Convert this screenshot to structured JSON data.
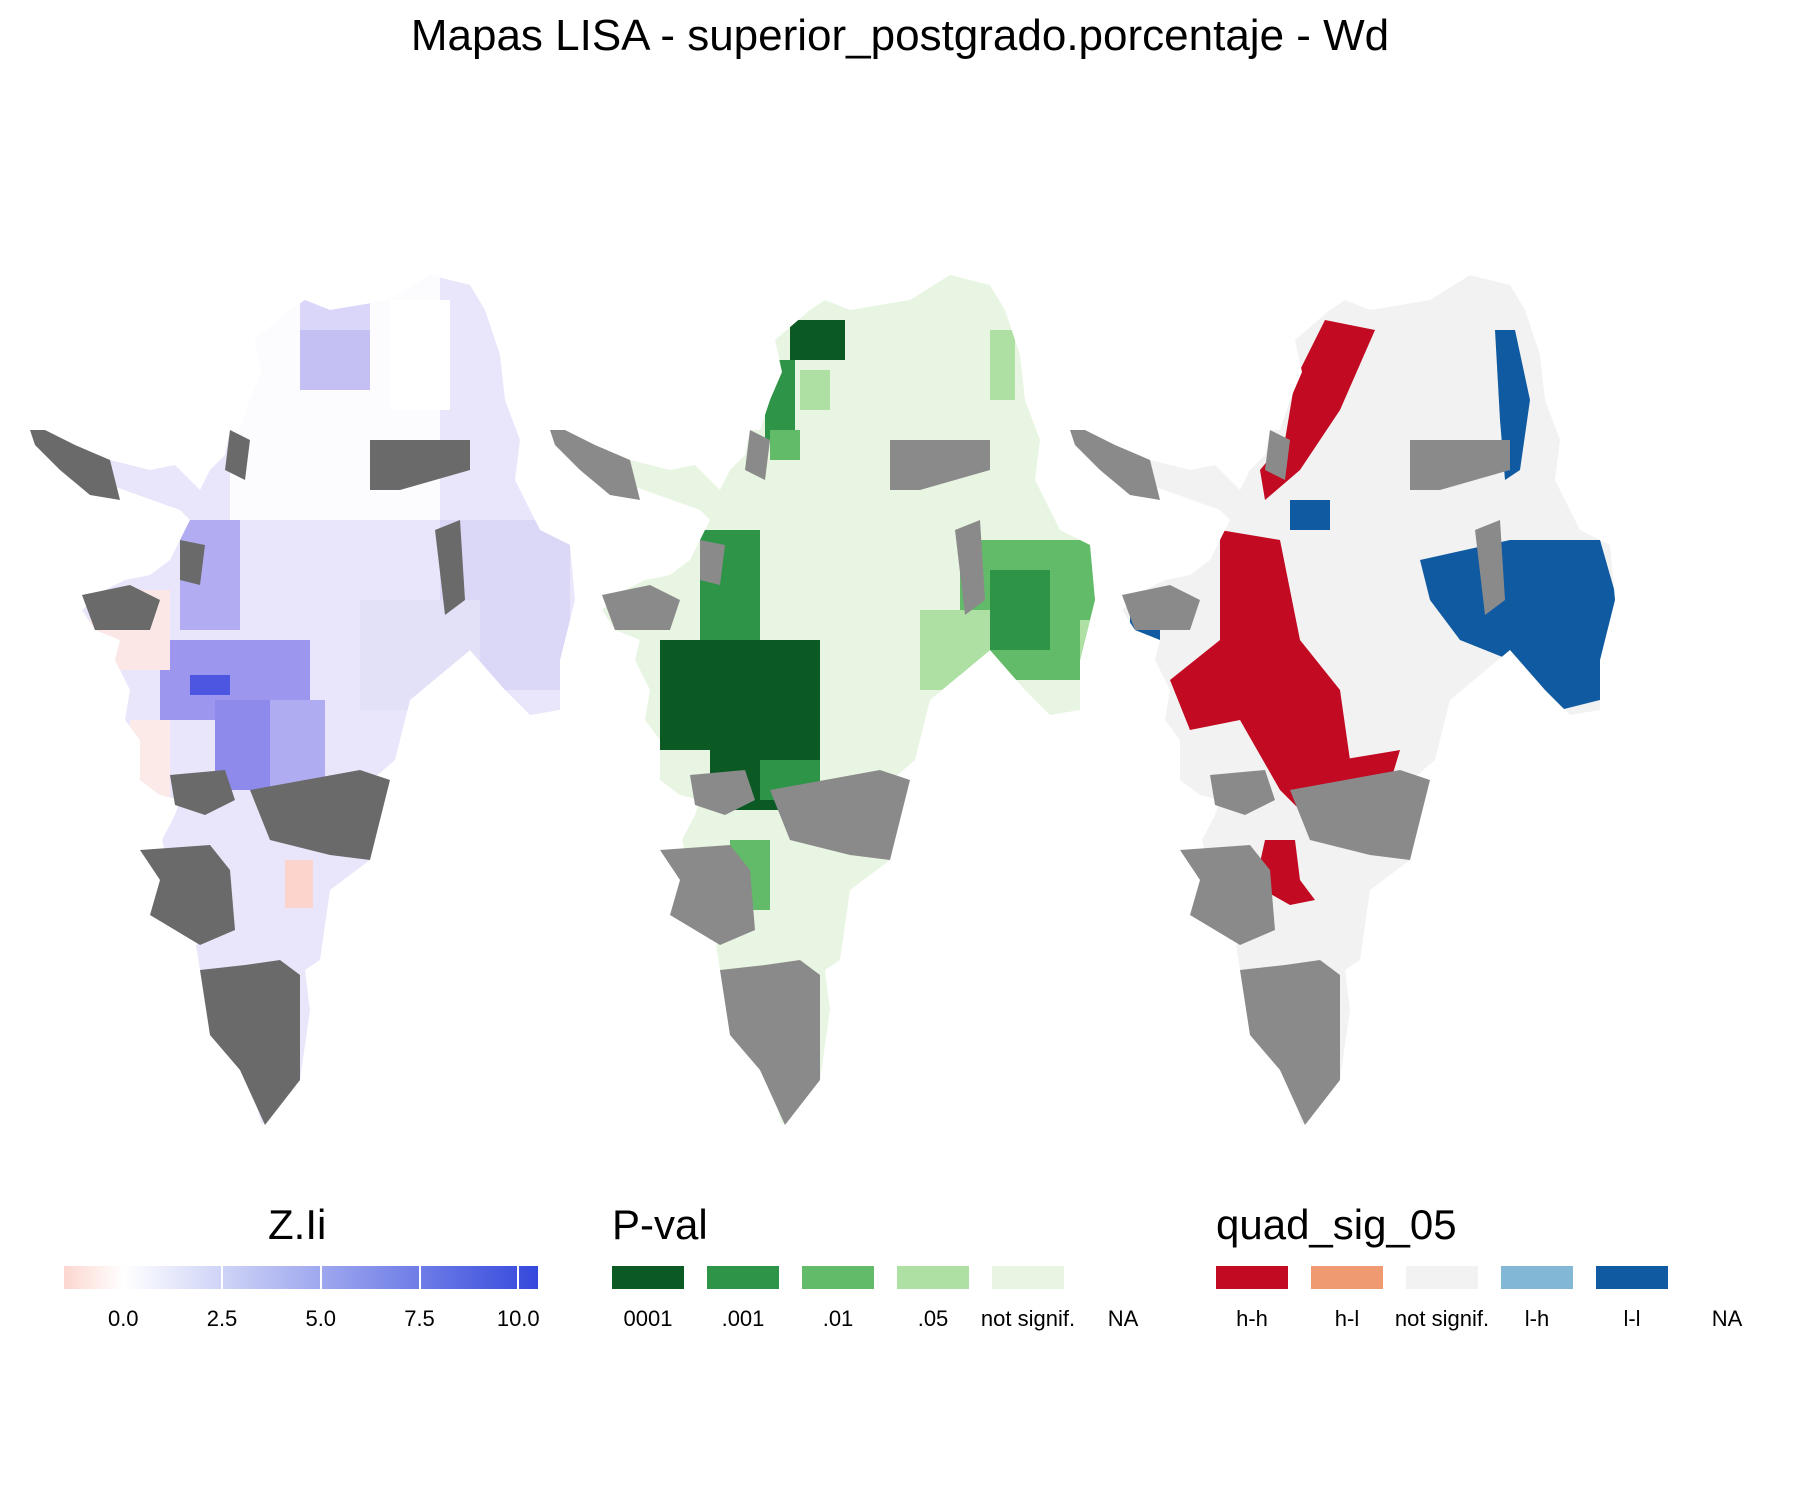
{
  "title": "Mapas LISA - superior_postgrado.porcentaje - Wd",
  "colors": {
    "missing": "#6a6a6a",
    "missing_light": "#8a8a8a",
    "border": "#e8e8e8"
  },
  "zli_legend": {
    "title": "Z.Ii",
    "ticks": [
      "0.0",
      "2.5",
      "5.0",
      "7.5",
      "10.0"
    ],
    "tick_values": [
      0.0,
      2.5,
      5.0,
      7.5,
      10.0
    ],
    "range": [
      -1.5,
      10.5
    ],
    "low_color": "#fcd6cf",
    "mid_color": "#ffffff",
    "high_color": "#3448dc"
  },
  "pval_legend": {
    "title": "P-val",
    "items": [
      {
        "label": "0001",
        "color": "#0b5a24"
      },
      {
        "label": ".001",
        "color": "#2e9447"
      },
      {
        "label": ".01",
        "color": "#62bb68"
      },
      {
        "label": ".05",
        "color": "#aee0a4"
      },
      {
        "label": "not signif.",
        "color": "#e8f5e2"
      },
      {
        "label": "NA",
        "color": "#ffffff"
      }
    ]
  },
  "quad_legend": {
    "title": "quad_sig_05",
    "items": [
      {
        "label": "h-h",
        "color": "#c20a22"
      },
      {
        "label": "h-l",
        "color": "#f09a72"
      },
      {
        "label": "not signif.",
        "color": "#f2f2f2"
      },
      {
        "label": "l-h",
        "color": "#82b7d6"
      },
      {
        "label": "l-l",
        "color": "#0f5aa0"
      },
      {
        "label": "NA",
        "color": "#ffffff"
      }
    ]
  }
}
